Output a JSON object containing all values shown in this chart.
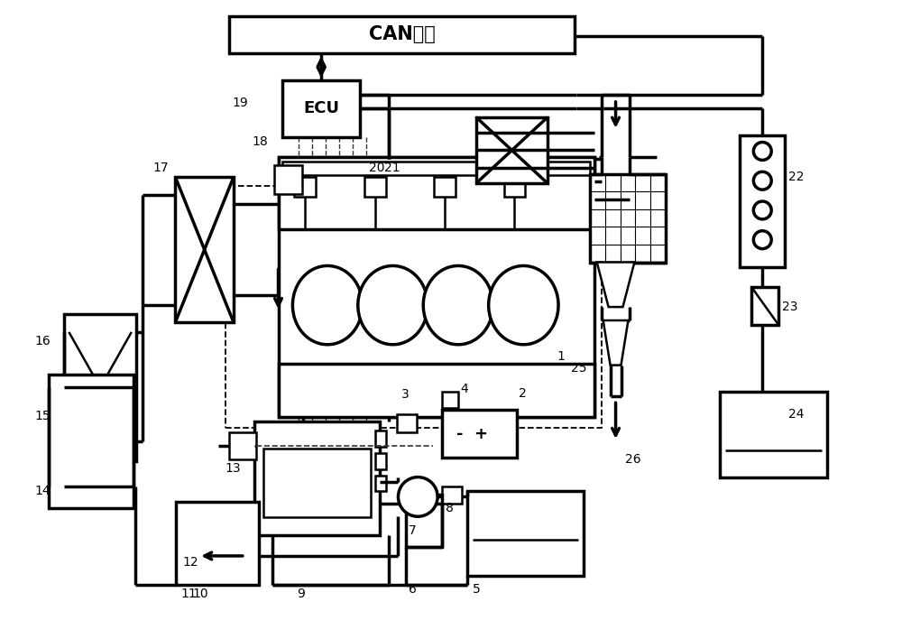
{
  "can_label": "CAN总线",
  "ecu_label": "ECU",
  "bg": "#ffffff",
  "lc": "#000000",
  "lw": 1.8,
  "lw2": 2.5,
  "lw3": 1.2,
  "figsize": [
    10.0,
    7.08
  ],
  "dpi": 100
}
